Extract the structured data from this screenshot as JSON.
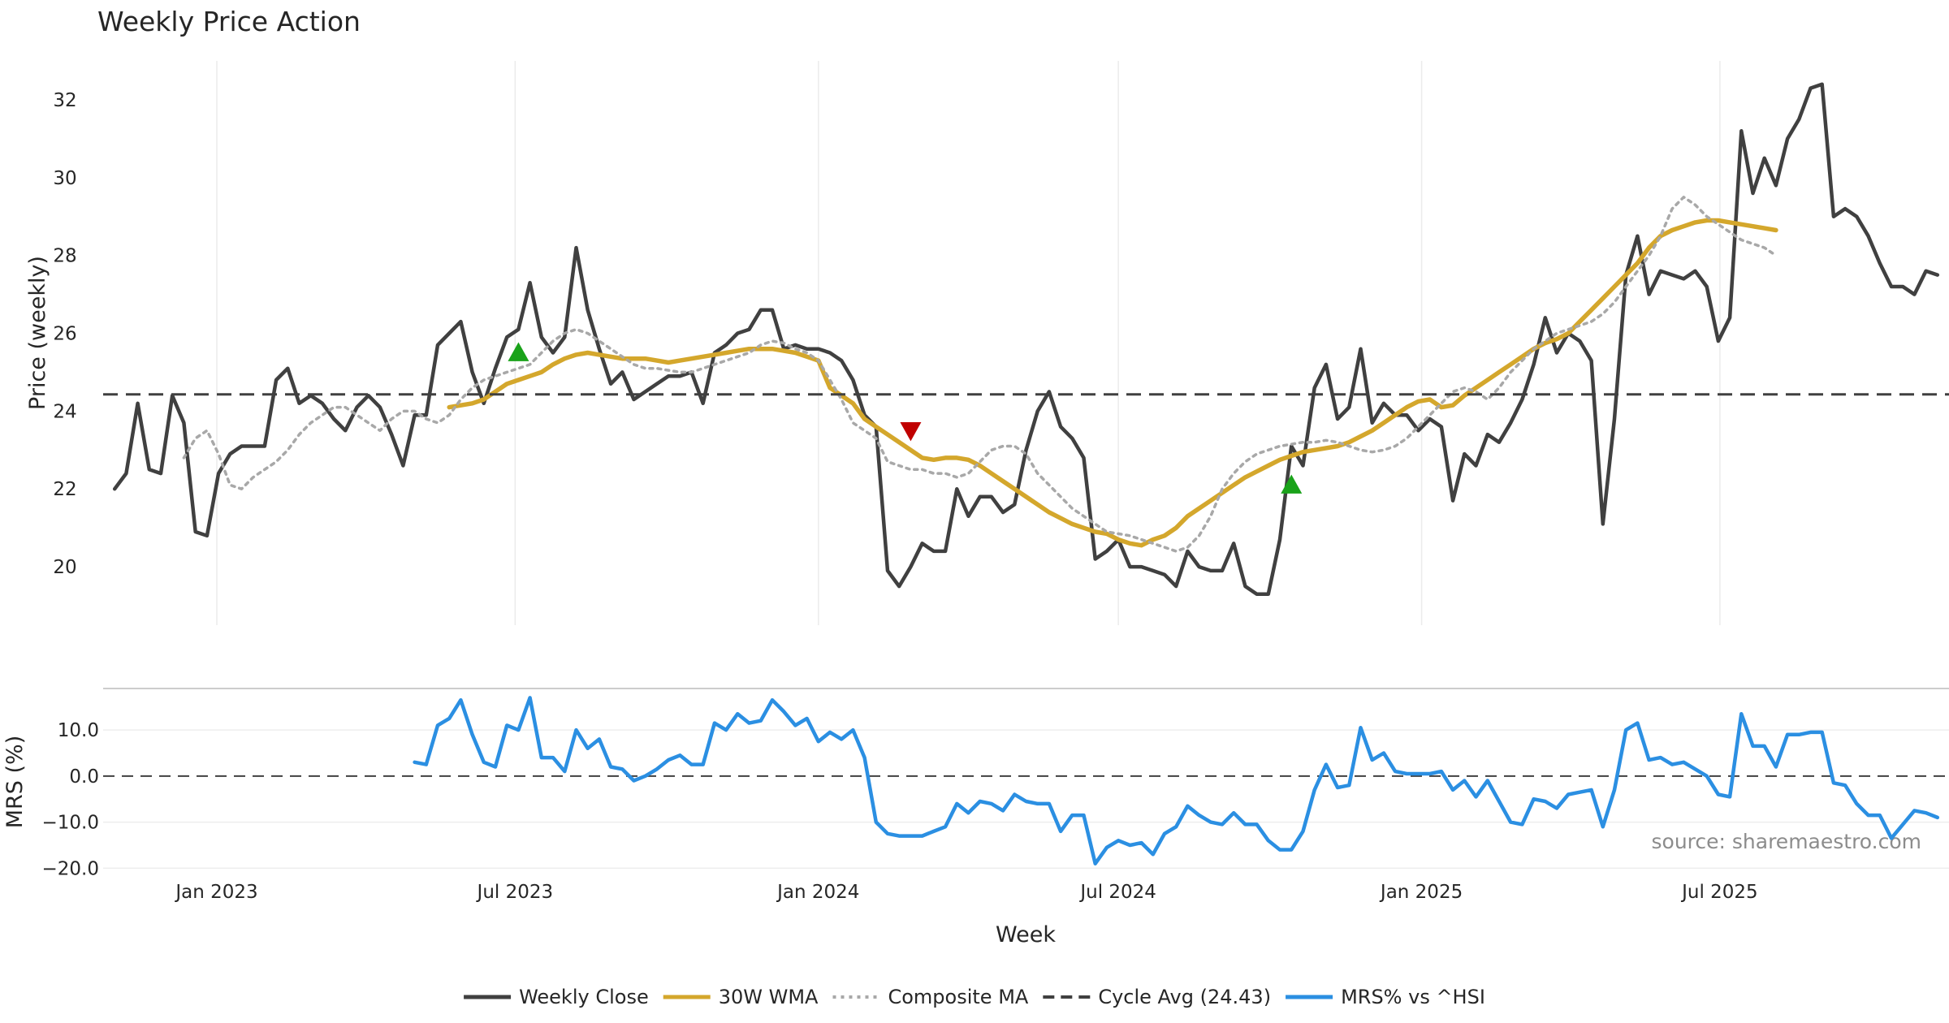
{
  "chart_data": [
    {
      "type": "line",
      "title": "Weekly Price Action",
      "xlabel": "",
      "ylabel": "Price (weekly)",
      "ylim": [
        18.5,
        33.0
      ],
      "y_ticks": [
        20,
        22,
        24,
        26,
        28,
        30,
        32
      ],
      "xlim": [
        "2022-10-24",
        "2025-11-17"
      ],
      "grid": "vertical",
      "x_ticks": [
        {
          "date": "2023-01-01",
          "label": "Jan 2023"
        },
        {
          "date": "2023-07-01",
          "label": "Jul 2023"
        },
        {
          "date": "2024-01-01",
          "label": "Jan 2024"
        },
        {
          "date": "2024-07-01",
          "label": "Jul 2024"
        },
        {
          "date": "2025-01-01",
          "label": "Jan 2025"
        },
        {
          "date": "2025-07-01",
          "label": "Jul 2025"
        }
      ],
      "x_start": "2022-10-31",
      "interval_days": 7,
      "series": [
        {
          "name": "Weekly Close",
          "color": "#404040",
          "style": "solid",
          "values": [
            22.0,
            22.4,
            24.2,
            22.5,
            22.4,
            24.4,
            23.7,
            20.9,
            20.8,
            22.4,
            22.9,
            23.1,
            23.1,
            23.1,
            24.8,
            25.1,
            24.2,
            24.4,
            24.2,
            23.8,
            23.5,
            24.1,
            24.4,
            24.1,
            23.4,
            22.6,
            23.9,
            23.9,
            25.7,
            26.0,
            26.3,
            25.0,
            24.2,
            25.1,
            25.9,
            26.1,
            27.3,
            25.9,
            25.5,
            25.9,
            28.2,
            26.6,
            25.6,
            24.7,
            25.0,
            24.3,
            24.5,
            24.7,
            24.9,
            24.9,
            25.0,
            24.2,
            25.5,
            25.7,
            26.0,
            26.1,
            26.6,
            26.6,
            25.6,
            25.7,
            25.6,
            25.6,
            25.5,
            25.3,
            24.8,
            23.9,
            23.6,
            19.9,
            19.5,
            20.0,
            20.6,
            20.4,
            20.4,
            22.0,
            21.3,
            21.8,
            21.8,
            21.4,
            21.6,
            23.0,
            24.0,
            24.5,
            23.6,
            23.3,
            22.8,
            20.2,
            20.4,
            20.7,
            20.0,
            20.0,
            19.9,
            19.8,
            19.5,
            20.4,
            20.0,
            19.9,
            19.9,
            20.6,
            19.5,
            19.3,
            19.3,
            20.7,
            23.1,
            22.6,
            24.6,
            25.2,
            23.8,
            24.1,
            25.6,
            23.7,
            24.2,
            23.9,
            23.9,
            23.5,
            23.8,
            23.6,
            21.7,
            22.9,
            22.6,
            23.4,
            23.2,
            23.7,
            24.3,
            25.2,
            26.4,
            25.5,
            26.0,
            25.8,
            25.3,
            21.1,
            23.8,
            27.5,
            28.5,
            27.0,
            27.6,
            27.5,
            27.4,
            27.6,
            27.2,
            25.8,
            26.4,
            31.2,
            29.6,
            30.5,
            29.8,
            31.0,
            31.5,
            32.3,
            32.4,
            29.0,
            29.2,
            29.0,
            28.5,
            27.8,
            27.2,
            27.2,
            27.0,
            27.6,
            27.5
          ]
        },
        {
          "name": "30W WMA",
          "color": "#d4a72c",
          "style": "solid",
          "values": [
            null,
            null,
            null,
            null,
            null,
            null,
            null,
            null,
            null,
            null,
            null,
            null,
            null,
            null,
            null,
            null,
            null,
            null,
            null,
            null,
            null,
            null,
            null,
            null,
            null,
            null,
            null,
            null,
            null,
            24.1,
            24.15,
            24.2,
            24.3,
            24.5,
            24.7,
            24.8,
            24.9,
            25.0,
            25.2,
            25.35,
            25.45,
            25.5,
            25.45,
            25.4,
            25.35,
            25.35,
            25.35,
            25.3,
            25.25,
            25.3,
            25.35,
            25.4,
            25.45,
            25.5,
            25.55,
            25.6,
            25.6,
            25.6,
            25.55,
            25.5,
            25.4,
            25.3,
            24.6,
            24.4,
            24.2,
            23.8,
            23.6,
            23.4,
            23.2,
            23.0,
            22.8,
            22.75,
            22.8,
            22.8,
            22.75,
            22.6,
            22.4,
            22.2,
            22.0,
            21.8,
            21.6,
            21.4,
            21.25,
            21.1,
            21.0,
            20.9,
            20.85,
            20.7,
            20.6,
            20.55,
            20.7,
            20.8,
            21.0,
            21.3,
            21.5,
            21.7,
            21.9,
            22.1,
            22.3,
            22.45,
            22.6,
            22.75,
            22.85,
            22.95,
            23.0,
            23.05,
            23.1,
            23.2,
            23.35,
            23.5,
            23.7,
            23.9,
            24.1,
            24.25,
            24.3,
            24.1,
            24.15,
            24.4,
            24.6,
            24.8,
            25.0,
            25.2,
            25.4,
            25.6,
            25.75,
            25.85,
            26.0,
            26.3,
            26.6,
            26.9,
            27.2,
            27.5,
            27.8,
            28.2,
            28.5,
            28.65,
            28.75,
            28.85,
            28.9,
            28.9,
            28.85,
            28.8,
            28.75,
            28.7,
            28.65
          ]
        },
        {
          "name": "Composite MA",
          "color": "#a8a8a8",
          "style": "dotted",
          "values": [
            null,
            null,
            null,
            null,
            null,
            null,
            22.8,
            23.3,
            23.5,
            22.9,
            22.1,
            22.0,
            22.3,
            22.5,
            22.7,
            23.0,
            23.4,
            23.7,
            23.9,
            24.1,
            24.1,
            23.9,
            23.7,
            23.5,
            23.8,
            24.0,
            24.0,
            23.8,
            23.7,
            23.9,
            24.3,
            24.6,
            24.8,
            24.9,
            25.0,
            25.1,
            25.2,
            25.5,
            25.8,
            26.0,
            26.1,
            26.0,
            25.8,
            25.6,
            25.4,
            25.2,
            25.1,
            25.1,
            25.05,
            25.0,
            25.0,
            25.1,
            25.2,
            25.3,
            25.4,
            25.5,
            25.7,
            25.8,
            25.75,
            25.6,
            25.5,
            25.3,
            24.8,
            24.3,
            23.7,
            23.5,
            23.3,
            22.7,
            22.6,
            22.5,
            22.5,
            22.4,
            22.4,
            22.3,
            22.4,
            22.7,
            23.0,
            23.1,
            23.1,
            22.9,
            22.4,
            22.1,
            21.8,
            21.5,
            21.3,
            21.1,
            20.9,
            20.85,
            20.8,
            20.7,
            20.6,
            20.5,
            20.4,
            20.5,
            20.8,
            21.3,
            22.0,
            22.4,
            22.7,
            22.9,
            23.0,
            23.1,
            23.15,
            23.2,
            23.2,
            23.25,
            23.2,
            23.1,
            23.0,
            22.95,
            23.0,
            23.1,
            23.3,
            23.6,
            23.9,
            24.2,
            24.5,
            24.6,
            24.5,
            24.3,
            24.6,
            25.0,
            25.3,
            25.6,
            25.8,
            26.0,
            26.1,
            26.2,
            26.3,
            26.5,
            26.8,
            27.2,
            27.6,
            28.0,
            28.5,
            29.2,
            29.5,
            29.3,
            29.0,
            28.8,
            28.6,
            28.4,
            28.3,
            28.2,
            28.0
          ]
        },
        {
          "name": "Cycle Avg (24.43)",
          "color": "#404040",
          "style": "dashed",
          "values": [
            24.43
          ]
        }
      ],
      "markers": [
        {
          "type": "buy",
          "date": "2023-07-03",
          "value": 25.5,
          "color": "#1aa21a"
        },
        {
          "type": "sell",
          "date": "2024-02-26",
          "value": 23.5,
          "color": "#c00000"
        },
        {
          "type": "buy",
          "date": "2024-10-14",
          "value": 22.1,
          "color": "#1aa21a"
        }
      ]
    },
    {
      "type": "line",
      "title": "",
      "xlabel": "Week",
      "ylabel": "MRS (%)",
      "ylim": [
        -21,
        19
      ],
      "y_ticks": [
        {
          "value": 10,
          "label": "10.0"
        },
        {
          "value": 0,
          "label": "0.0"
        },
        {
          "value": -10,
          "label": "−10.0"
        },
        {
          "value": -20,
          "label": "−20.0"
        }
      ],
      "x_start": "2023-05-01",
      "interval_days": 7,
      "zero_line": 0,
      "series": [
        {
          "name": "MRS% vs ^HSI",
          "color": "#2b8fe2",
          "style": "solid",
          "values": [
            3,
            2.5,
            11,
            12.5,
            16.5,
            9,
            3,
            2,
            11,
            10,
            17,
            4,
            4,
            1,
            10,
            6,
            8,
            2,
            1.5,
            -1,
            0,
            1.5,
            3.5,
            4.5,
            2.5,
            2.5,
            11.5,
            10,
            13.5,
            11.5,
            12,
            16.5,
            14,
            11,
            12.5,
            7.5,
            9.5,
            8,
            10,
            4,
            -10,
            -12.5,
            -13,
            -13,
            -13,
            -12,
            -11,
            -6,
            -8,
            -5.5,
            -6,
            -7.5,
            -4,
            -5.5,
            -6,
            -6,
            -12,
            -8.5,
            -8.5,
            -19,
            -15.5,
            -14,
            -15,
            -14.5,
            -17,
            -12.5,
            -11,
            -6.5,
            -8.5,
            -10,
            -10.5,
            -8,
            -10.5,
            -10.5,
            -14,
            -16,
            -16,
            -12,
            -3,
            2.5,
            -2.5,
            -2,
            10.5,
            3.5,
            5,
            1,
            0.5,
            0.5,
            0.5,
            1,
            -3,
            -1,
            -4.5,
            -1,
            -5.5,
            -10,
            -10.5,
            -5,
            -5.5,
            -7,
            -4,
            -3.5,
            -3,
            -11,
            -3,
            10,
            11.5,
            3.5,
            4,
            2.5,
            3,
            1.5,
            0,
            -4,
            -4.5,
            13.5,
            6.5,
            6.5,
            2,
            9,
            9,
            9.5,
            9.5,
            -1.5,
            -2,
            -6,
            -8.5,
            -8.5,
            -13.5,
            -10.5,
            -7.5,
            -8,
            -9
          ]
        }
      ],
      "source": "source: sharemaestro.com"
    }
  ],
  "legend": {
    "placement": "bottom-center",
    "items": [
      {
        "label": "Weekly Close",
        "color": "#404040",
        "style": "solid"
      },
      {
        "label": "30W WMA",
        "color": "#d4a72c",
        "style": "solid"
      },
      {
        "label": "Composite MA",
        "color": "#a8a8a8",
        "style": "dotted"
      },
      {
        "label": "Cycle Avg (24.43)",
        "color": "#404040",
        "style": "dashed"
      },
      {
        "label": "MRS% vs ^HSI",
        "color": "#2b8fe2",
        "style": "solid"
      }
    ]
  }
}
